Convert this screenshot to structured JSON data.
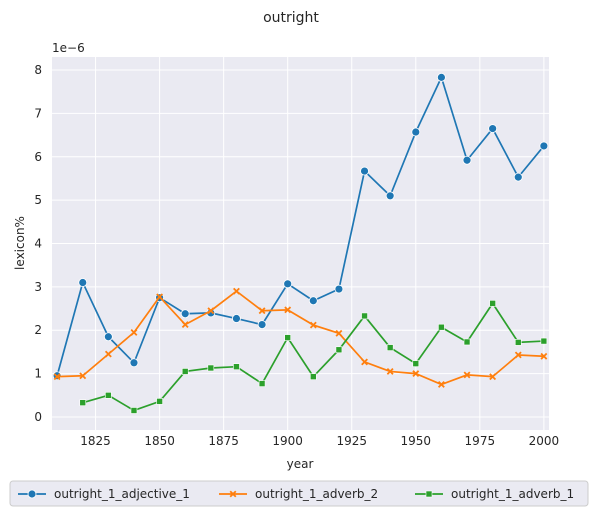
{
  "chart_data": {
    "type": "line",
    "title": "outright",
    "xlabel": "year",
    "ylabel": "lexicon%",
    "y_scale_label": "1e−6",
    "xlim": [
      1808,
      2002
    ],
    "ylim": [
      -0.3,
      8.3
    ],
    "xticks": [
      1825,
      1850,
      1875,
      1900,
      1925,
      1950,
      1975,
      2000
    ],
    "yticks": [
      0,
      1,
      2,
      3,
      4,
      5,
      6,
      7,
      8
    ],
    "grid": true,
    "legend_position": "bottom",
    "series": [
      {
        "name": "outright_1_adjective_1",
        "color": "#1f77b4",
        "marker": "circle",
        "x": [
          1810,
          1820,
          1830,
          1840,
          1850,
          1860,
          1870,
          1880,
          1890,
          1900,
          1910,
          1920,
          1930,
          1940,
          1950,
          1960,
          1970,
          1980,
          1990,
          2000
        ],
        "y": [
          0.95,
          3.1,
          1.85,
          1.25,
          2.75,
          2.38,
          2.4,
          2.27,
          2.13,
          3.07,
          2.68,
          2.95,
          5.67,
          5.1,
          6.57,
          7.83,
          5.92,
          6.65,
          5.53,
          6.25
        ]
      },
      {
        "name": "outright_1_adverb_2",
        "color": "#ff7f0e",
        "marker": "x",
        "x": [
          1810,
          1820,
          1830,
          1840,
          1850,
          1860,
          1870,
          1880,
          1890,
          1900,
          1910,
          1920,
          1930,
          1940,
          1950,
          1960,
          1970,
          1980,
          1990,
          2000
        ],
        "y": [
          0.93,
          0.95,
          1.45,
          1.95,
          2.77,
          2.13,
          2.45,
          2.9,
          2.45,
          2.47,
          2.12,
          1.93,
          1.27,
          1.05,
          1.0,
          0.75,
          0.97,
          0.93,
          1.43,
          1.4
        ]
      },
      {
        "name": "outright_1_adverb_1",
        "color": "#2ca02c",
        "marker": "square",
        "x": [
          1820,
          1830,
          1840,
          1850,
          1860,
          1870,
          1880,
          1890,
          1900,
          1910,
          1920,
          1930,
          1940,
          1950,
          1960,
          1970,
          1980,
          1990,
          2000
        ],
        "y": [
          0.33,
          0.5,
          0.15,
          0.36,
          1.05,
          1.13,
          1.16,
          0.77,
          1.83,
          0.93,
          1.55,
          2.33,
          1.6,
          1.23,
          2.07,
          1.73,
          2.62,
          1.72,
          1.75
        ]
      }
    ]
  }
}
